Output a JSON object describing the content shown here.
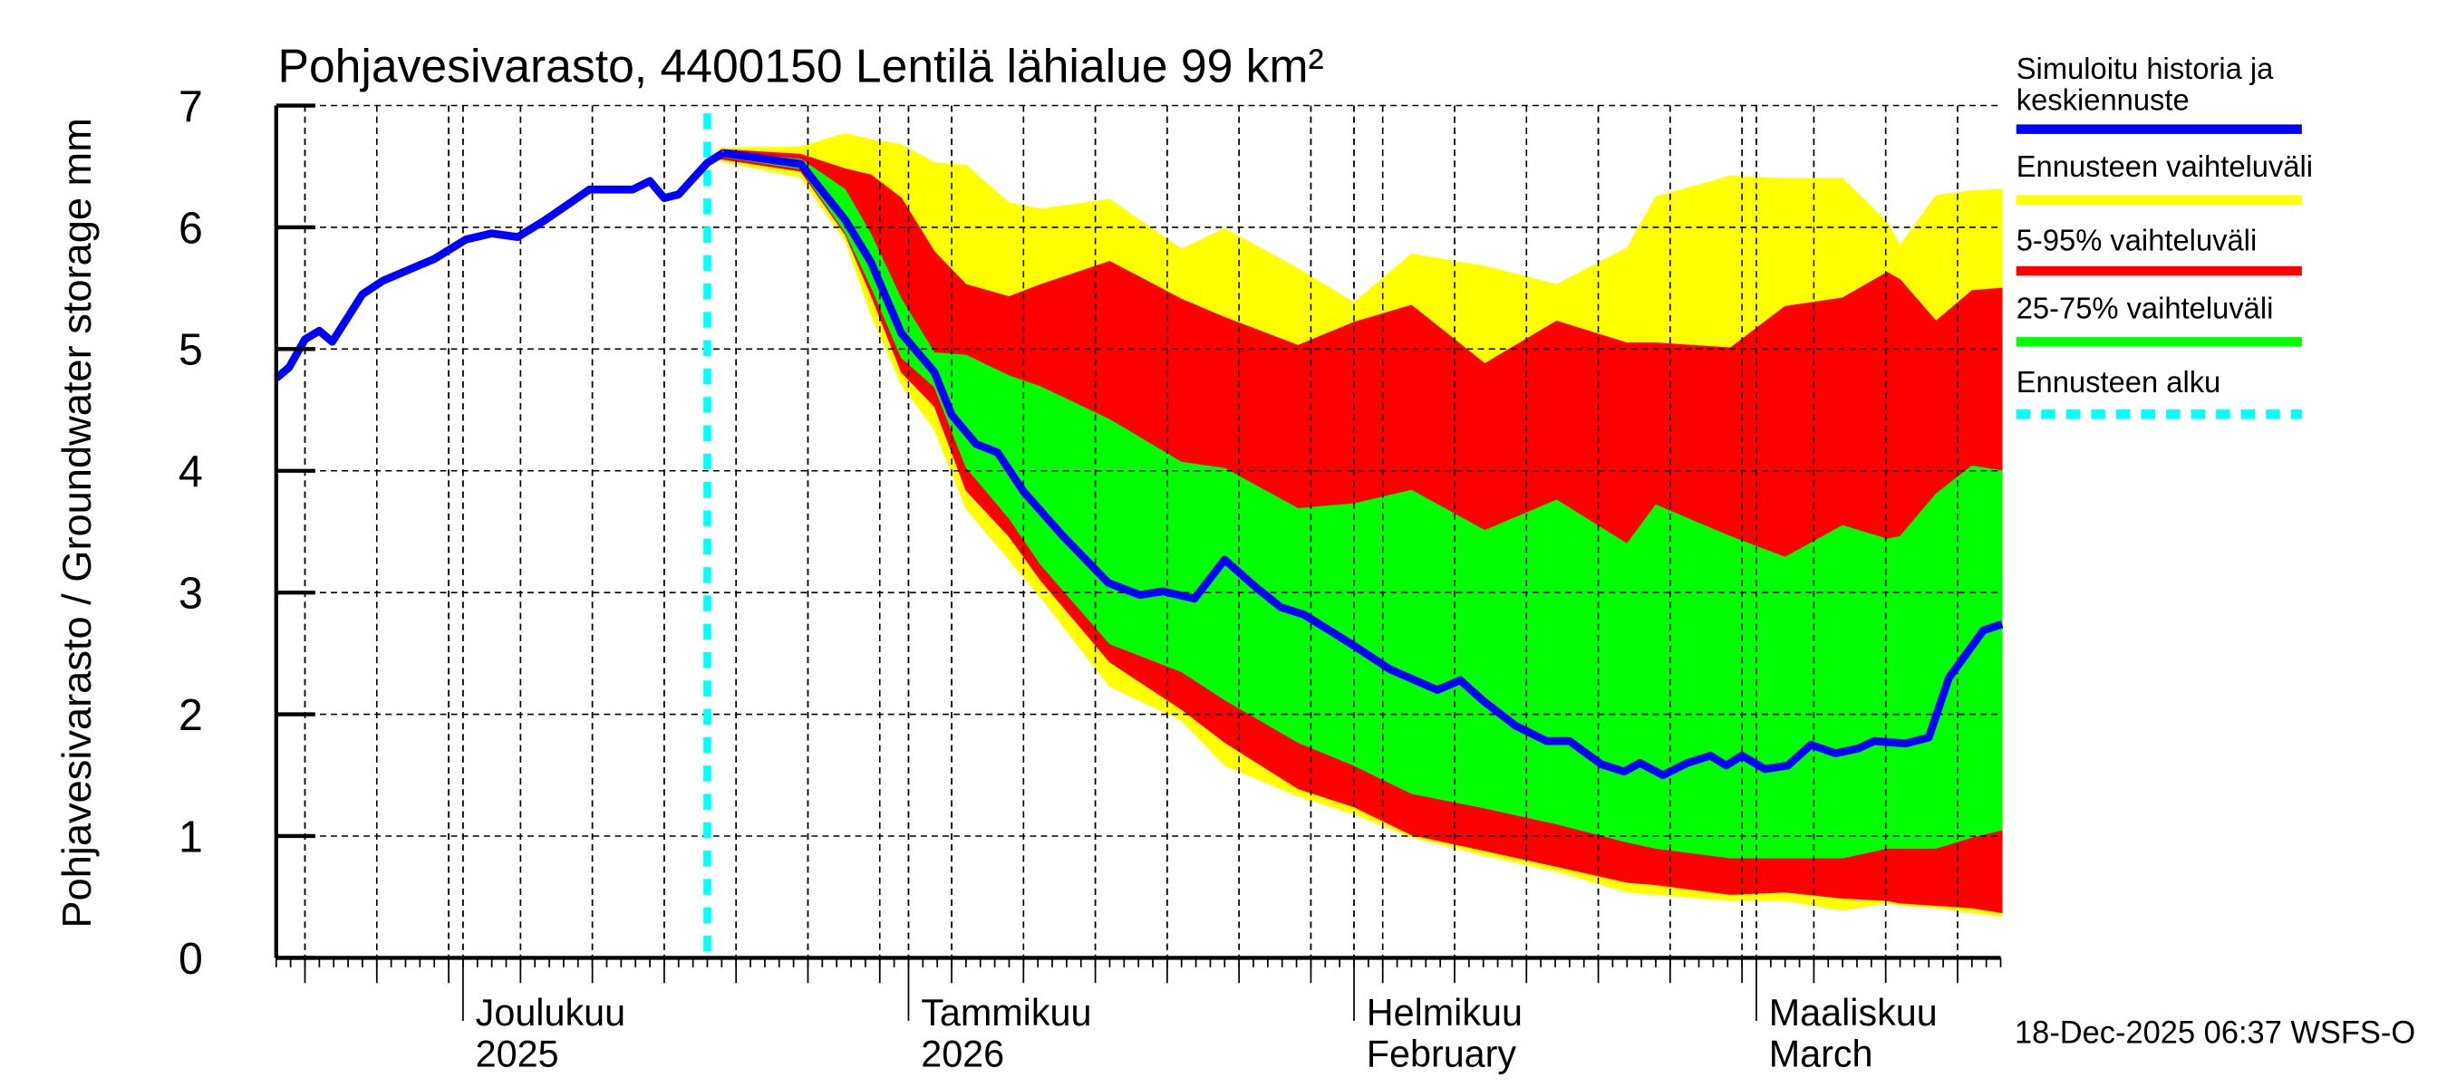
{
  "chart_data": {
    "type": "area",
    "title": "Pohjavesivarasto, 4400150 Lentilä lähialue 99 km²",
    "ylabel": "Pohjavesivarasto / Groundwater storage   mm",
    "xlabel": "",
    "ylim": [
      0,
      7
    ],
    "yticks": [
      0,
      1,
      2,
      3,
      4,
      5,
      6,
      7
    ],
    "x_unit": "days since 2025-11-18",
    "xlim": [
      0,
      120
    ],
    "grid": true,
    "legend_position": "right",
    "month_labels": [
      {
        "day": 13,
        "line1": "Joulukuu",
        "line2": "2025"
      },
      {
        "day": 44,
        "line1": "Tammikuu",
        "line2": "2026"
      },
      {
        "day": 75,
        "line1": "Helmikuu",
        "line2": "February"
      },
      {
        "day": 103,
        "line1": "Maaliskuu",
        "line2": "March"
      }
    ],
    "forecast_start_day": 30,
    "legend": [
      {
        "key": "median",
        "label_lines": [
          "Simuloitu historia ja",
          "keskiennuste"
        ],
        "color": "#0000ff",
        "style": "solid"
      },
      {
        "key": "range",
        "label_lines": [
          "Ennusteen vaihteluväli"
        ],
        "color": "#ffff00",
        "style": "solid"
      },
      {
        "key": "p5_95",
        "label_lines": [
          "5-95% vaihteluväli"
        ],
        "color": "#ff0000",
        "style": "solid"
      },
      {
        "key": "p25_75",
        "label_lines": [
          "25-75% vaihteluväli"
        ],
        "color": "#00ff00",
        "style": "solid"
      },
      {
        "key": "start",
        "label_lines": [
          "Ennusteen alku"
        ],
        "color": "#00ffff",
        "style": "dashed"
      }
    ],
    "bands": {
      "day": [
        30,
        31,
        36.5,
        39.6,
        41.4,
        43.5,
        45.8,
        48.0,
        51.0,
        53.2,
        58.0,
        63.0,
        66.0,
        71.1,
        75.0,
        79.0,
        84.1,
        89.1,
        94.0,
        96.0,
        101.2,
        105.0,
        109.0,
        112.1,
        113.0,
        115.5,
        118.0,
        120.1
      ],
      "max": [
        6.55,
        6.65,
        6.66,
        6.77,
        6.72,
        6.68,
        6.53,
        6.51,
        6.2,
        6.15,
        6.23,
        5.82,
        5.99,
        5.66,
        5.38,
        5.78,
        5.68,
        5.53,
        5.83,
        6.25,
        6.42,
        6.4,
        6.4,
        6.04,
        5.85,
        6.26,
        6.3,
        6.31
      ],
      "p95": [
        6.55,
        6.64,
        6.6,
        6.48,
        6.43,
        6.24,
        5.8,
        5.53,
        5.43,
        5.53,
        5.72,
        5.41,
        5.26,
        5.03,
        5.22,
        5.36,
        4.88,
        5.23,
        5.05,
        5.05,
        5.01,
        5.35,
        5.42,
        5.63,
        5.57,
        5.23,
        5.48,
        5.5
      ],
      "p75": [
        6.55,
        6.62,
        6.56,
        6.31,
        5.94,
        5.41,
        4.97,
        4.95,
        4.78,
        4.69,
        4.42,
        4.07,
        4.02,
        3.69,
        3.73,
        3.84,
        3.51,
        3.76,
        3.4,
        3.72,
        3.46,
        3.29,
        3.55,
        3.44,
        3.46,
        3.81,
        4.04,
        4.0
      ],
      "p25": [
        6.55,
        6.58,
        6.48,
        5.96,
        5.51,
        4.93,
        4.69,
        4.03,
        3.61,
        3.23,
        2.58,
        2.35,
        2.12,
        1.77,
        1.58,
        1.35,
        1.23,
        1.1,
        0.95,
        0.9,
        0.82,
        0.82,
        0.82,
        0.9,
        0.9,
        0.9,
        0.99,
        1.05
      ],
      "p5": [
        6.55,
        6.56,
        6.46,
        5.94,
        5.44,
        4.81,
        4.53,
        3.84,
        3.46,
        3.1,
        2.43,
        2.04,
        1.77,
        1.39,
        1.24,
        1.01,
        0.88,
        0.75,
        0.62,
        0.6,
        0.52,
        0.54,
        0.49,
        0.47,
        0.45,
        0.43,
        0.41,
        0.37
      ],
      "min": [
        6.55,
        6.54,
        6.41,
        5.89,
        5.28,
        4.71,
        4.34,
        3.69,
        3.27,
        2.96,
        2.23,
        1.95,
        1.58,
        1.33,
        1.18,
        0.99,
        0.84,
        0.71,
        0.54,
        0.52,
        0.47,
        0.47,
        0.39,
        0.45,
        0.43,
        0.41,
        0.37,
        0.34
      ]
    },
    "history": {
      "day": [
        0,
        0.9,
        2.0,
        3.0,
        3.9,
        6.0,
        7.4,
        9.6,
        11.0,
        13.2,
        15.0,
        16.8,
        18.6,
        21.8,
        24.8,
        26.0,
        27.0,
        28.0,
        30.0,
        31.1
      ],
      "value": [
        4.76,
        4.85,
        5.08,
        5.15,
        5.06,
        5.45,
        5.56,
        5.67,
        5.74,
        5.9,
        5.95,
        5.92,
        6.05,
        6.31,
        6.31,
        6.38,
        6.24,
        6.27,
        6.53,
        6.61
      ]
    },
    "median_forecast": {
      "day": [
        31.1,
        36.5,
        39.6,
        41.4,
        43.5,
        45.8,
        47.0,
        48.7,
        50.2,
        52.0,
        54.7,
        57.9,
        60.1,
        61.7,
        63.9,
        66.0,
        68.2,
        69.9,
        71.5,
        73.7,
        75.3,
        77.5,
        80.8,
        82.4,
        84.0,
        86.2,
        88.4,
        90.0,
        92.2,
        93.8,
        94.9,
        96.5,
        98.2,
        99.8,
        100.9,
        102.0,
        103.6,
        105.2,
        106.8,
        108.5,
        110.1,
        111.2,
        113.4,
        115.0,
        116.4,
        118.8,
        120.1
      ],
      "value": [
        6.61,
        6.52,
        6.06,
        5.71,
        5.13,
        4.81,
        4.46,
        4.22,
        4.15,
        3.83,
        3.47,
        3.08,
        2.98,
        3.01,
        2.95,
        3.27,
        3.04,
        2.88,
        2.82,
        2.66,
        2.54,
        2.37,
        2.2,
        2.28,
        2.11,
        1.91,
        1.78,
        1.78,
        1.59,
        1.53,
        1.6,
        1.5,
        1.6,
        1.66,
        1.58,
        1.66,
        1.55,
        1.58,
        1.75,
        1.68,
        1.72,
        1.78,
        1.76,
        1.81,
        2.3,
        2.69,
        2.74
      ]
    }
  },
  "footer": {
    "timestamp": "18-Dec-2025 06:37 WSFS-O"
  }
}
